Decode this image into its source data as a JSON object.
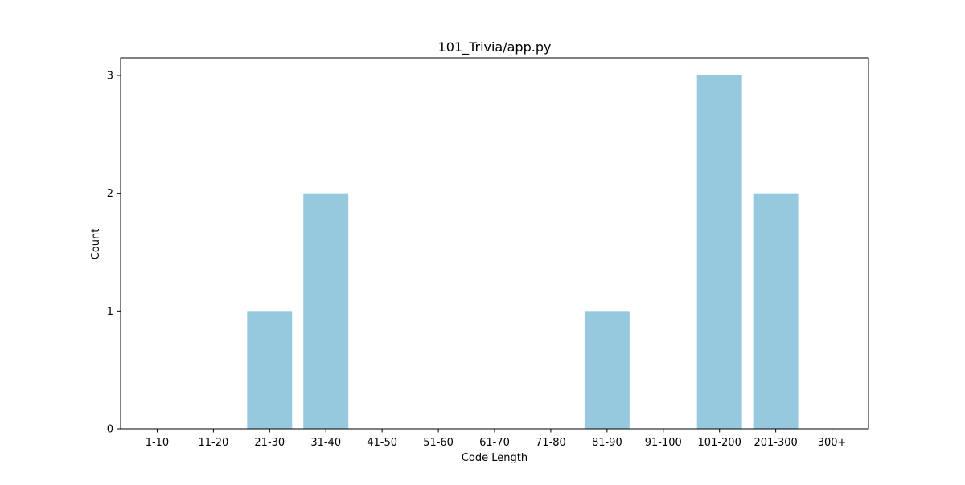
{
  "chart_data": {
    "type": "bar",
    "title": "101_Trivia/app.py",
    "xlabel": "Code Length",
    "ylabel": "Count",
    "categories": [
      "1-10",
      "11-20",
      "21-30",
      "31-40",
      "41-50",
      "51-60",
      "61-70",
      "71-80",
      "81-90",
      "91-100",
      "101-200",
      "201-300",
      "300+"
    ],
    "values": [
      0,
      0,
      1,
      2,
      0,
      0,
      0,
      0,
      1,
      0,
      3,
      2,
      0
    ],
    "ylim": [
      0,
      3.15
    ],
    "yticks": [
      "0",
      "1",
      "2",
      "3"
    ],
    "bar_color": "#96c9dd",
    "grid": false,
    "legend": "none"
  }
}
